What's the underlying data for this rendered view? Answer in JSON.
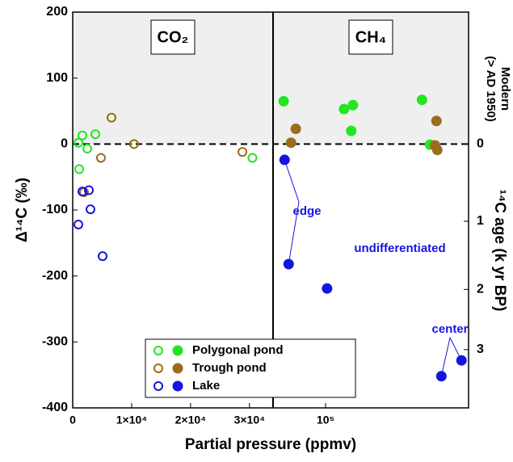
{
  "chart_data": {
    "type": "scatter",
    "x_label": "Partial pressure (ppmv)",
    "y_label": "Δ¹⁴C (‰)",
    "y2_label": "¹⁴C age (k yr BP)",
    "modern_label": [
      "Modern",
      "(> AD 1950)"
    ],
    "ylim": [
      -400,
      200
    ],
    "yticks": [
      -400,
      -300,
      -200,
      -100,
      0,
      100,
      200
    ],
    "y2ticks": [
      0,
      1,
      2,
      3
    ],
    "panels": [
      {
        "label": "CO₂",
        "log": false,
        "xlim": [
          0,
          34000
        ],
        "xticks": [
          0,
          {
            "value": 10000,
            "label": "1×10⁴"
          },
          {
            "value": 20000,
            "label": "2×10⁴"
          },
          {
            "value": 30000,
            "label": "3×10⁴"
          }
        ]
      },
      {
        "label": "CH₄",
        "log": true,
        "xlim": [
          50000,
          660000
        ],
        "xticks": [
          {
            "value": 100000,
            "label": "10⁵"
          }
        ]
      }
    ],
    "series": [
      {
        "name": "Polygonal pond",
        "color": "#22e622",
        "panels": [
          {
            "x": [
              960,
              1640,
              2470,
              3840,
              1100,
              30500
            ],
            "y": [
              2,
              13,
              -7,
              15,
              -38,
              -21
            ]
          },
          {
            "x": [
              57500,
              127600,
              143500,
              140300,
              357000,
              397000
            ],
            "y": [
              65,
              53,
              59,
              20,
              67,
              -1
            ]
          }
        ]
      },
      {
        "name": "Trough pond",
        "color": "#9c6b1c",
        "panels": [
          {
            "x": [
              6580,
              4790,
              10400,
              1920,
              28800
            ],
            "y": [
              40,
              -21,
              0,
              -73,
              -12
            ]
          },
          {
            "x": [
              67500,
              63400,
              432000,
              424000,
              437000
            ],
            "y": [
              23,
              2,
              35,
              -2,
              -9
            ]
          }
        ]
      },
      {
        "name": "Lake",
        "color": "#1515e0",
        "panels": [
          {
            "x": [
              1640,
              2740,
              3010,
              960,
              5070
            ],
            "y": [
              -72,
              -70,
              -99,
              -122,
              -170
            ]
          },
          {
            "x": [
              58200,
              61400,
              102000,
              461000,
              601000
            ],
            "y": [
              -24,
              -182,
              -219,
              -352,
              -328
            ]
          }
        ]
      }
    ],
    "annotations": [
      {
        "text": "edge",
        "points": [
          0,
          1
        ]
      },
      {
        "text": "undifferentiated",
        "points": []
      },
      {
        "text": "center",
        "points": [
          3,
          4
        ]
      }
    ]
  }
}
